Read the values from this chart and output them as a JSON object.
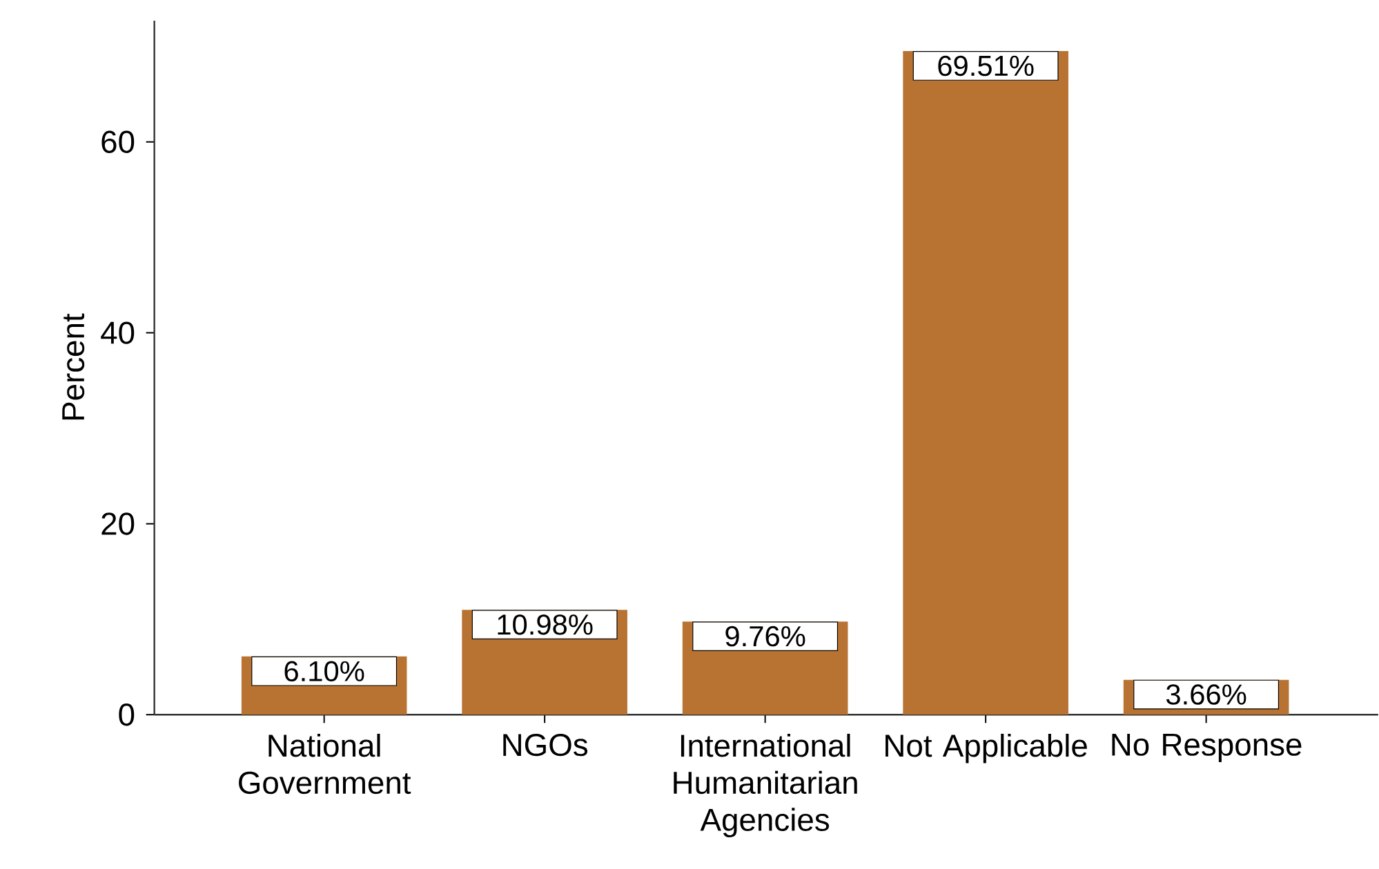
{
  "chart_data": {
    "type": "bar",
    "ylabel": "Percent",
    "categories": [
      "National Government",
      "NGOs",
      "International Humanitarian Agencies",
      "Not Applicable",
      "No Response"
    ],
    "values": [
      6.1,
      10.98,
      9.76,
      69.51,
      3.66
    ],
    "value_labels": [
      "6.10%",
      "10.98%",
      "9.76%",
      "69.51%",
      "3.66%"
    ],
    "color": "#b87333",
    "ylim": [
      0,
      72.7
    ],
    "yticks": [
      0,
      20,
      40,
      60
    ],
    "grid": false
  }
}
